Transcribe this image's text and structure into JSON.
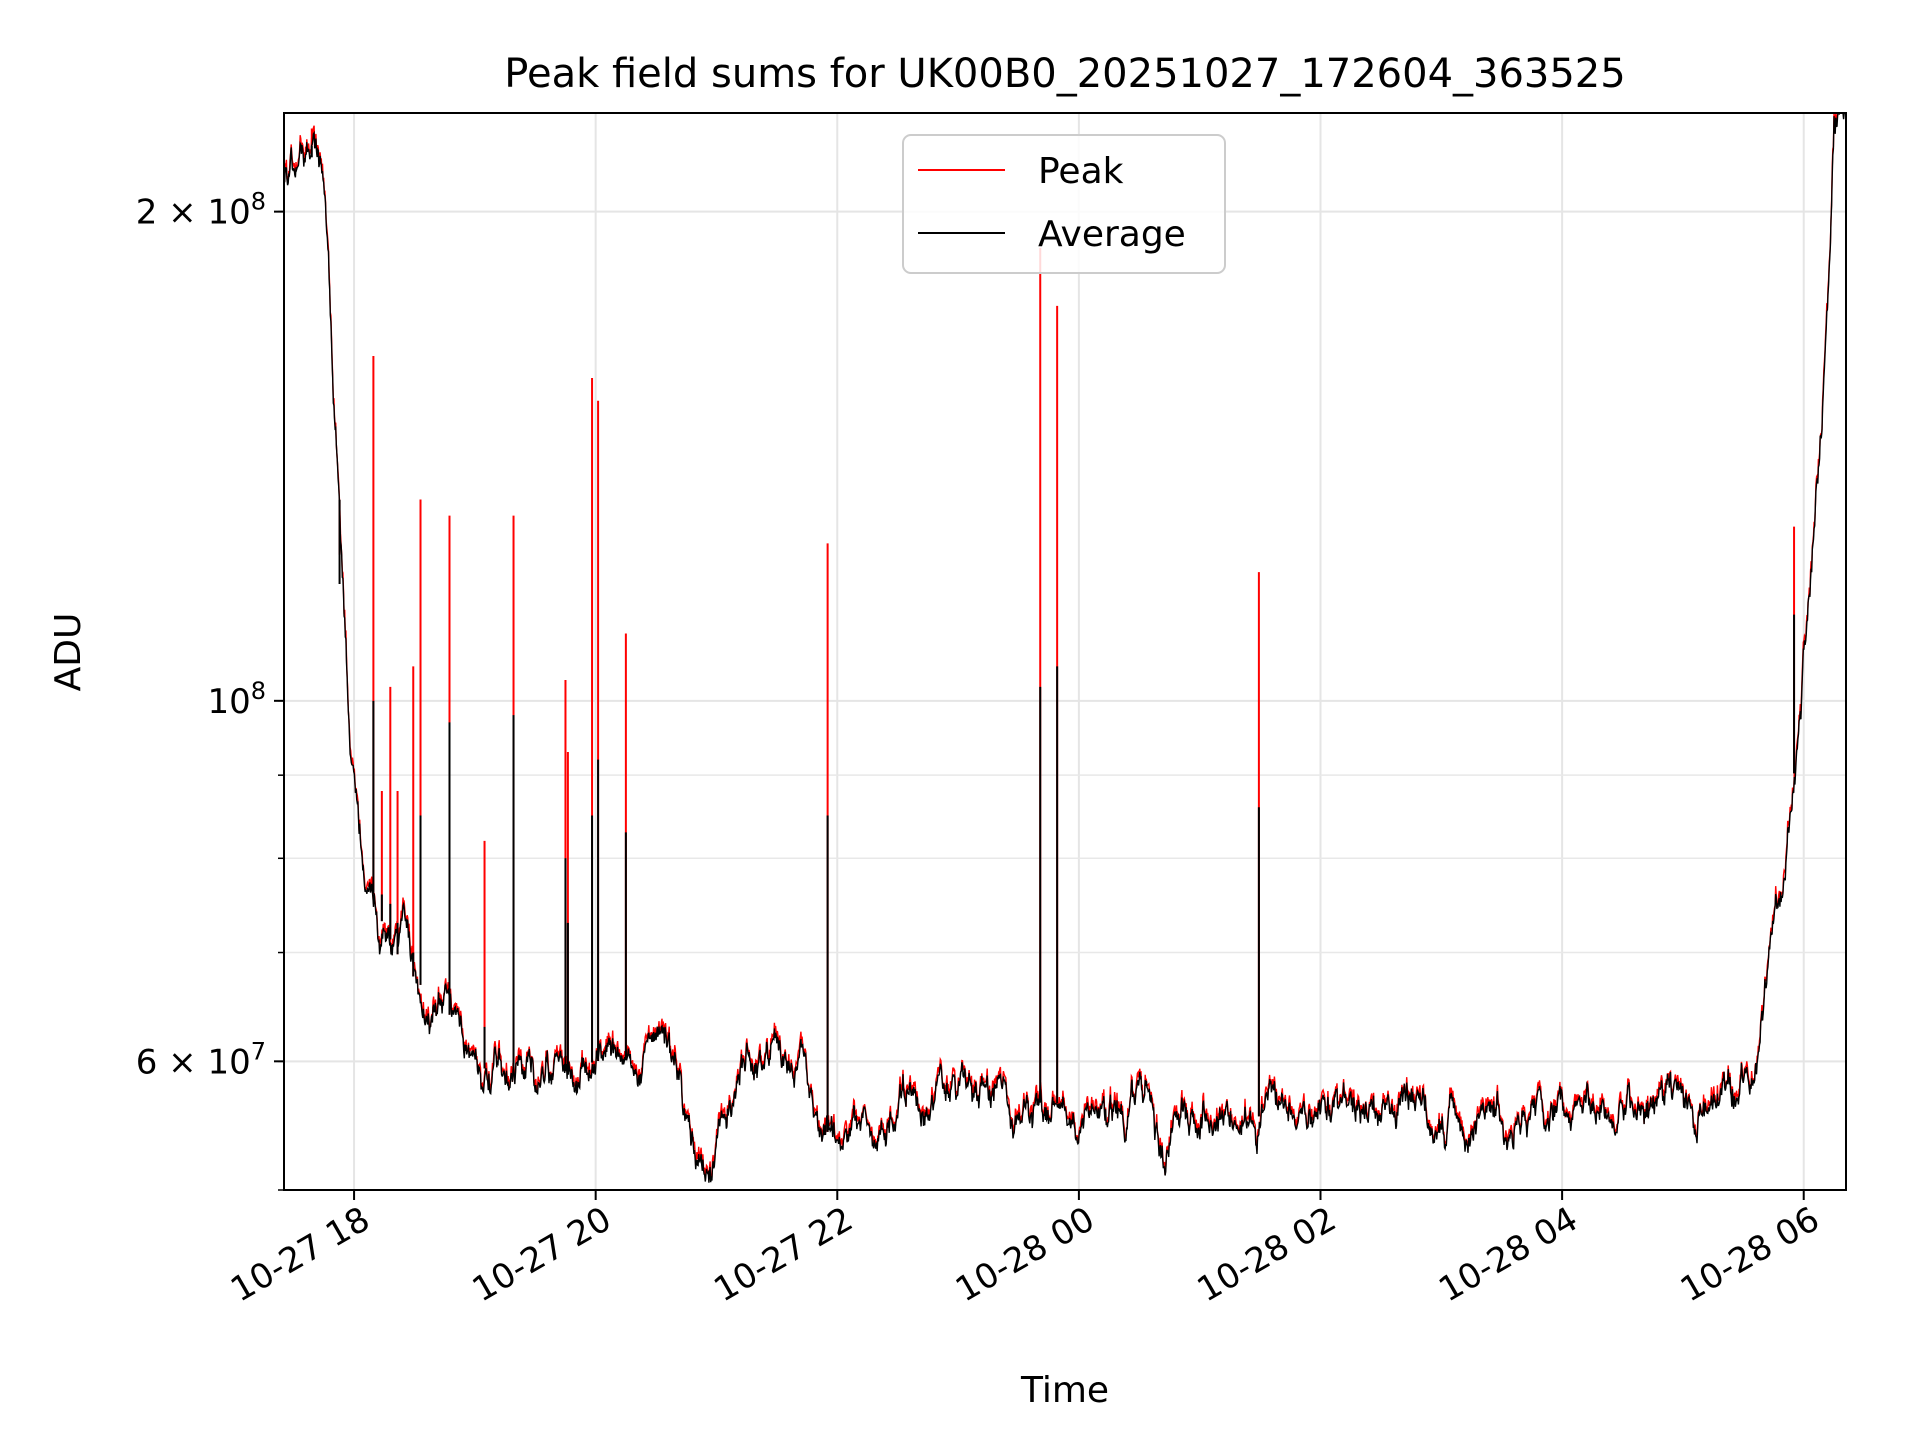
{
  "chart_data": {
    "type": "line",
    "title": "Peak field sums for UK00B0_20251027_172604_363525",
    "xlabel": "Time",
    "ylabel": "ADU",
    "y_scale": "log",
    "ylim": [
      50000000,
      230000000
    ],
    "x_range_hours": [
      -0.58,
      12.35
    ],
    "x_ticks": [
      {
        "hour": 0,
        "label": "10-27 18"
      },
      {
        "hour": 2,
        "label": "10-27 20"
      },
      {
        "hour": 4,
        "label": "10-27 22"
      },
      {
        "hour": 6,
        "label": "10-28 00"
      },
      {
        "hour": 8,
        "label": "10-28 02"
      },
      {
        "hour": 10,
        "label": "10-28 04"
      },
      {
        "hour": 12,
        "label": "10-28 06"
      }
    ],
    "y_ticks": [
      {
        "value": 60000000,
        "base": "6 × 10",
        "exp": "7"
      },
      {
        "value": 100000000,
        "base": "10",
        "exp": "8"
      },
      {
        "value": 200000000,
        "base": "2 × 10",
        "exp": "8"
      }
    ],
    "grid": true,
    "legend_position": "top-center",
    "series": [
      {
        "name": "Peak",
        "color": "#ff0000"
      },
      {
        "name": "Average",
        "color": "#000000"
      }
    ],
    "baseline_curve": [
      [
        -0.58,
        215000000
      ],
      [
        -0.48,
        212000000
      ],
      [
        -0.4,
        218000000
      ],
      [
        -0.3,
        221000000
      ],
      [
        -0.25,
        205000000
      ],
      [
        -0.18,
        160000000
      ],
      [
        -0.1,
        125000000
      ],
      [
        -0.03,
        95000000
      ],
      [
        0.05,
        82000000
      ],
      [
        0.2,
        74000000
      ],
      [
        0.35,
        70000000
      ],
      [
        0.5,
        67500000
      ],
      [
        0.7,
        65000000
      ],
      [
        0.9,
        63000000
      ],
      [
        1.0,
        61000000
      ],
      [
        1.1,
        59000000
      ],
      [
        1.25,
        58500000
      ],
      [
        1.45,
        59500000
      ],
      [
        1.7,
        59000000
      ],
      [
        2.0,
        60000000
      ],
      [
        2.3,
        60500000
      ],
      [
        2.5,
        62000000
      ],
      [
        2.7,
        58000000
      ],
      [
        2.85,
        52000000
      ],
      [
        3.0,
        53000000
      ],
      [
        3.2,
        58000000
      ],
      [
        3.4,
        60500000
      ],
      [
        3.6,
        59500000
      ],
      [
        3.7,
        60500000
      ],
      [
        3.85,
        55000000
      ],
      [
        4.0,
        53500000
      ],
      [
        4.2,
        55500000
      ],
      [
        4.4,
        53000000
      ],
      [
        4.6,
        56500000
      ],
      [
        5.0,
        57000000
      ],
      [
        5.3,
        57500000
      ],
      [
        5.5,
        53000000
      ],
      [
        5.7,
        57000000
      ],
      [
        6.1,
        55500000
      ],
      [
        6.4,
        55000000
      ],
      [
        6.55,
        57500000
      ],
      [
        6.7,
        51000000
      ],
      [
        6.85,
        55000000
      ],
      [
        7.2,
        55500000
      ],
      [
        8.0,
        55500000
      ],
      [
        9.0,
        55800000
      ],
      [
        10.0,
        55800000
      ],
      [
        11.0,
        56000000
      ],
      [
        11.3,
        57500000
      ],
      [
        11.5,
        58000000
      ],
      [
        11.62,
        61000000
      ],
      [
        11.75,
        72000000
      ],
      [
        11.85,
        80000000
      ],
      [
        11.95,
        95000000
      ],
      [
        12.05,
        120000000
      ],
      [
        12.12,
        140000000
      ],
      [
        12.2,
        175000000
      ],
      [
        12.25,
        225000000
      ],
      [
        12.35,
        232000000
      ]
    ],
    "peak_spikes": [
      {
        "hour": -0.35,
        "peak": 225000000,
        "average": 216000000
      },
      {
        "hour": -0.12,
        "peak": 123000000,
        "average": 118000000
      },
      {
        "hour": 0.16,
        "peak": 163000000,
        "average": 100000000
      },
      {
        "hour": 0.23,
        "peak": 88000000,
        "average": 76000000
      },
      {
        "hour": 0.3,
        "peak": 102000000,
        "average": 75000000
      },
      {
        "hour": 0.36,
        "peak": 88000000,
        "average": 73000000
      },
      {
        "hour": 0.49,
        "peak": 105000000,
        "average": 70000000
      },
      {
        "hour": 0.55,
        "peak": 133000000,
        "average": 85000000
      },
      {
        "hour": 0.79,
        "peak": 130000000,
        "average": 97000000
      },
      {
        "hour": 1.08,
        "peak": 82000000,
        "average": 63000000
      },
      {
        "hour": 1.32,
        "peak": 130000000,
        "average": 98000000
      },
      {
        "hour": 1.75,
        "peak": 103000000,
        "average": 80000000
      },
      {
        "hour": 1.77,
        "peak": 93000000,
        "average": 73000000
      },
      {
        "hour": 1.97,
        "peak": 158000000,
        "average": 85000000
      },
      {
        "hour": 2.02,
        "peak": 153000000,
        "average": 92000000
      },
      {
        "hour": 2.25,
        "peak": 110000000,
        "average": 83000000
      },
      {
        "hour": 3.92,
        "peak": 125000000,
        "average": 85000000
      },
      {
        "hour": 5.68,
        "peak": 190000000,
        "average": 102000000
      },
      {
        "hour": 5.82,
        "peak": 175000000,
        "average": 105000000
      },
      {
        "hour": 7.49,
        "peak": 120000000,
        "average": 86000000
      },
      {
        "hour": 11.92,
        "peak": 128000000,
        "average": 113000000
      }
    ]
  }
}
